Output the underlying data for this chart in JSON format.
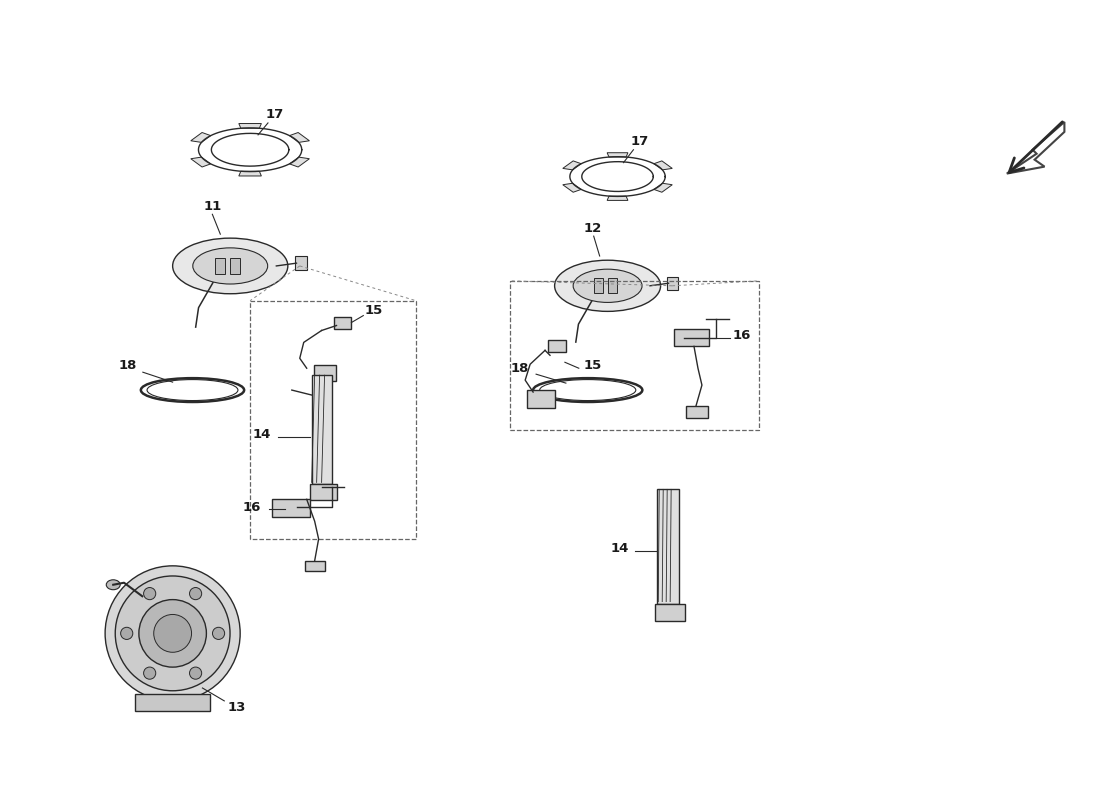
{
  "background_color": "#ffffff",
  "line_color": "#2a2a2a",
  "fig_width": 11.0,
  "fig_height": 8.0,
  "lw": 1.0,
  "label_fontsize": 9.5
}
